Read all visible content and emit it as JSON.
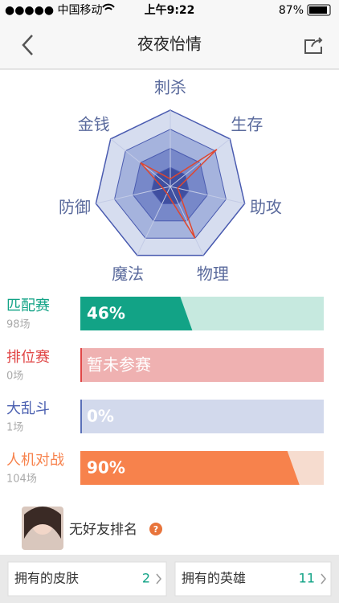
{
  "status_bar": {
    "carrier": "●●●●● 中国移动",
    "time": "上午9:22",
    "battery": "87%"
  },
  "nav": {
    "title": "夜夜怡情"
  },
  "radar": {
    "type": "radar",
    "axes": [
      "刺杀",
      "生存",
      "助攻",
      "物理",
      "魔法",
      "防御",
      "金钱"
    ],
    "values": [
      10,
      78,
      10,
      75,
      10,
      10,
      50
    ],
    "rlim": [
      0,
      100
    ],
    "rticks": [
      25,
      50,
      75,
      100
    ],
    "ring_colors": [
      "#3f4fa0",
      "#7788c9",
      "#a5b3dd",
      "#d6ddef"
    ],
    "line_color": "#e0472f"
  },
  "modes": [
    {
      "name": "匹配赛",
      "games": "98场",
      "value": 46,
      "value_label": "46%",
      "color": "#12a386",
      "track_color": "#c6e9df",
      "name_color": "#12a386"
    },
    {
      "name": "排位赛",
      "games": "0场",
      "value": null,
      "value_label": "暂未参赛",
      "color": "#e04545",
      "track_color": "#efb1b1",
      "name_color": "#e04545"
    },
    {
      "name": "大乱斗",
      "games": "1场",
      "value": 0,
      "value_label": "0%",
      "color": "#5a70b8",
      "track_color": "#d2d9ec",
      "name_color": "#4a5fb0"
    },
    {
      "name": "人机对战",
      "games": "104场",
      "value": 90,
      "value_label": "90%",
      "color": "#f7824c",
      "track_color": "#f6dccf",
      "name_color": "#f7824c"
    }
  ],
  "vlim": [
    0,
    100
  ],
  "friend": {
    "text": "无好友排名"
  },
  "footer": [
    {
      "label": "拥有的皮肤",
      "count": "2"
    },
    {
      "label": "拥有的英雄",
      "count": "11"
    }
  ]
}
